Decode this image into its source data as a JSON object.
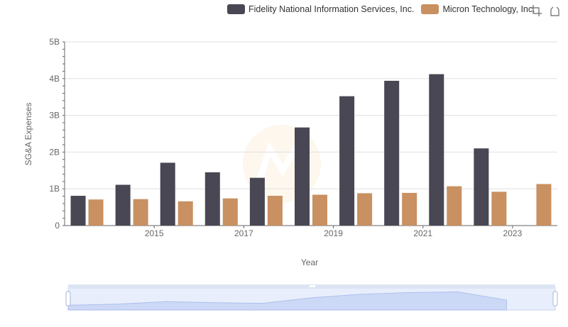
{
  "chart_data": {
    "type": "bar",
    "title": "",
    "xlabel": "Year",
    "ylabel": "SG&A Expenses",
    "categories": [
      "2014",
      "2015",
      "2016",
      "2017",
      "2018",
      "2019",
      "2020",
      "2021",
      "2022",
      "2023",
      "2024"
    ],
    "x_tick_labels": [
      "2015",
      "2017",
      "2019",
      "2021",
      "2023"
    ],
    "y_tick_labels": [
      "0",
      "1B",
      "2B",
      "3B",
      "4B",
      "5B"
    ],
    "ylim": [
      0,
      5000000000
    ],
    "series": [
      {
        "name": "Fidelity National Information Services, Inc.",
        "color": "#484753",
        "values": [
          810000000,
          1110000000,
          1710000000,
          1450000000,
          1300000000,
          2670000000,
          3520000000,
          3940000000,
          4120000000,
          2100000000,
          null
        ]
      },
      {
        "name": "Micron Technology, Inc.",
        "color": "#c99061",
        "values": [
          710000000,
          720000000,
          660000000,
          740000000,
          810000000,
          840000000,
          880000000,
          890000000,
          1070000000,
          920000000,
          1130000000
        ]
      }
    ],
    "grid": true,
    "legend_position": "top-right"
  },
  "toolbox": {
    "zoom_icon": "zoom-icon",
    "restore_icon": "restore-icon"
  },
  "datazoom": {
    "range_start": 0,
    "range_end": 100
  }
}
